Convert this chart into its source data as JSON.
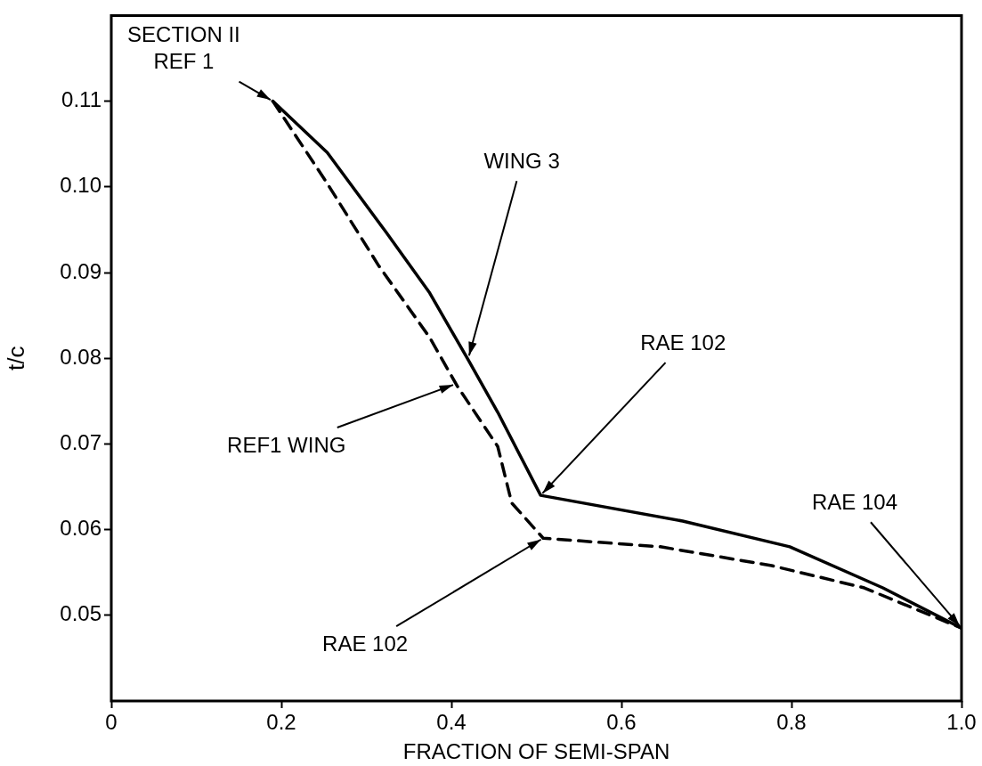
{
  "chart_data": {
    "type": "line",
    "xlabel": "FRACTION OF SEMI-SPAN",
    "ylabel": "t/c",
    "xlim": [
      0,
      1.0
    ],
    "ylim": [
      0.04,
      0.12
    ],
    "xticks": [
      0,
      0.2,
      0.4,
      0.6,
      0.8,
      {
        "value": 1.0,
        "label": "1.0"
      }
    ],
    "yticks": [
      0.05,
      0.06,
      0.07,
      0.08,
      0.09,
      {
        "value": 0.1,
        "label": "0.10"
      },
      0.11
    ],
    "grid": false,
    "legend": false,
    "marker": "none",
    "series": [
      {
        "color": "#000000",
        "line_style": "solid",
        "x": [
          0.19,
          0.254,
          0.3225,
          0.3746,
          0.4187,
          0.4545,
          0.505,
          0.672,
          0.798,
          0.9075,
          1.0
        ],
        "values": [
          0.11,
          0.104,
          0.0948,
          0.0876,
          0.08,
          0.0737,
          0.064,
          0.061,
          0.058,
          0.0532,
          0.0485
        ]
      },
      {
        "color": "#000000",
        "line_style": "dashed",
        "x": [
          0.19,
          0.254,
          0.3145,
          0.3746,
          0.4066,
          0.4545,
          0.471,
          0.508,
          0.6457,
          0.7766,
          0.8857,
          1.0
        ],
        "values": [
          0.11,
          0.1004,
          0.0908,
          0.0824,
          0.0768,
          0.0697,
          0.0631,
          0.059,
          0.058,
          0.0558,
          0.0532,
          0.0485
        ]
      }
    ],
    "annotations": [
      {
        "text": "SECTION II\nREF 1",
        "x": 0.19,
        "y": 0.11
      },
      {
        "text": "WING 3",
        "x": 0.42,
        "y": 0.08
      },
      {
        "text": "REF1 WING",
        "x": 0.405,
        "y": 0.077
      },
      {
        "text": "RAE 102",
        "x": 0.505,
        "y": 0.064
      },
      {
        "text": "RAE 102",
        "x": 0.508,
        "y": 0.059
      },
      {
        "text": "RAE 104",
        "x": 1.0,
        "y": 0.0485
      }
    ]
  }
}
